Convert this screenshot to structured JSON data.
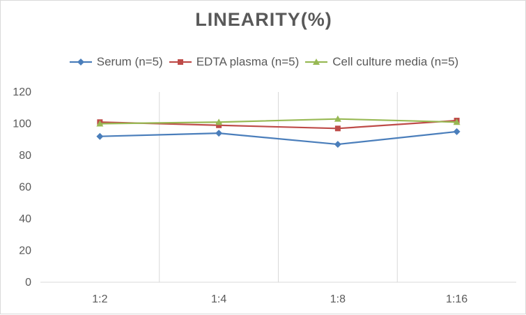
{
  "chart_data": {
    "type": "line",
    "title": "LINEARITY(%)",
    "categories": [
      "1:2",
      "1:4",
      "1:8",
      "1:16"
    ],
    "series": [
      {
        "name": "Serum (n=5)",
        "values": [
          92,
          94,
          87,
          95
        ],
        "color": "#4a7ebb",
        "marker": "diamond"
      },
      {
        "name": "EDTA plasma (n=5)",
        "values": [
          101,
          99,
          97,
          102
        ],
        "color": "#be4b48",
        "marker": "square"
      },
      {
        "name": "Cell culture media (n=5)",
        "values": [
          100,
          101,
          103,
          101
        ],
        "color": "#98b954",
        "marker": "triangle"
      }
    ],
    "ylim": [
      0,
      120
    ],
    "yticks": [
      "0",
      "20",
      "40",
      "60",
      "80",
      "100",
      "120"
    ],
    "grid": "vertical",
    "legend": "top"
  }
}
